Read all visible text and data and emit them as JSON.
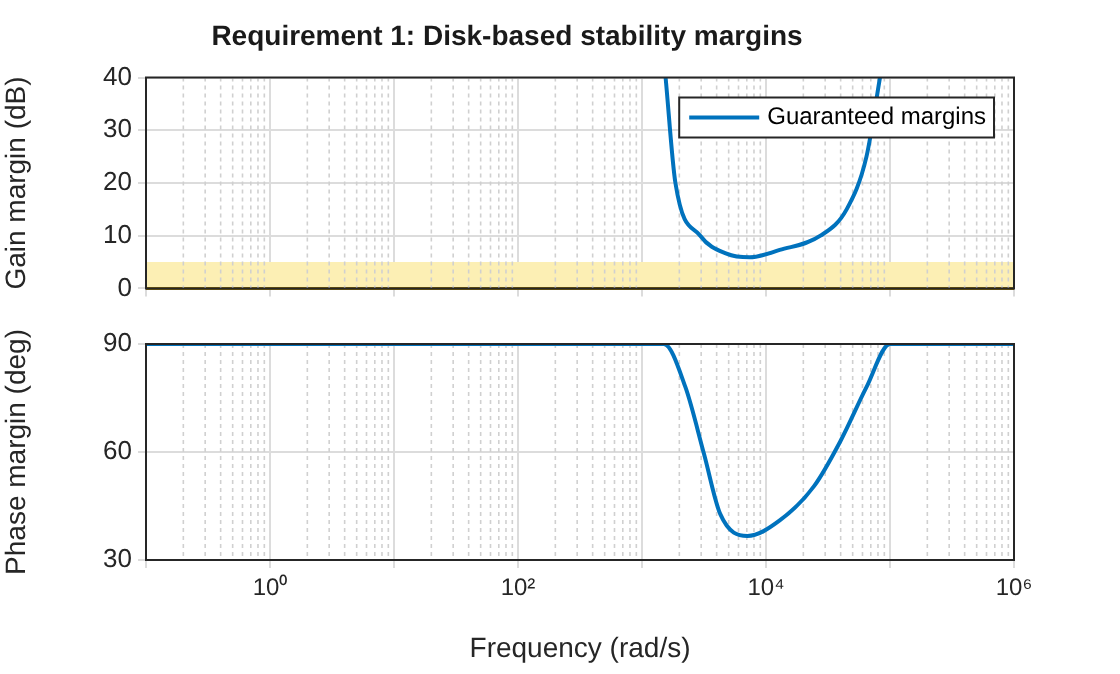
{
  "chart_data": [
    {
      "type": "line",
      "title": "Requirement 1: Disk-based stability margins",
      "ylabel": "Gain margin (dB)",
      "log": "x",
      "grid": true,
      "legend": "top right",
      "marker": "none",
      "line_style": "solid",
      "tick_labels": "y",
      "xlim": [
        0.1,
        1000000
      ],
      "xticks": [
        {
          "value": 0.1,
          "label": null
        },
        {
          "value": 1,
          "label": null
        },
        {
          "value": 10,
          "label": null
        },
        {
          "value": 100,
          "label": null
        },
        {
          "value": 1000,
          "label": null
        },
        {
          "value": 10000,
          "label": null
        },
        {
          "value": 100000,
          "label": null
        },
        {
          "value": 1000000,
          "label": null
        }
      ],
      "ylim": [
        0,
        40
      ],
      "yticks": [
        0,
        10,
        20,
        30,
        40
      ],
      "bands": [
        {
          "axis": "y",
          "from": 0,
          "to": 5,
          "color": "#fcefb4"
        }
      ],
      "series": [
        {
          "name": "Guaranteed margins",
          "color": "#0072bd",
          "x": [
            1550,
            1860,
            2950,
            4800,
            7400,
            12900,
            27500,
            44700,
            64600,
            83000
          ],
          "values": [
            40,
            20,
            10,
            6.6,
            5.9,
            7.3,
            10,
            15,
            25,
            40
          ]
        }
      ]
    },
    {
      "type": "line",
      "xlabel": "Frequency (rad/s)",
      "ylabel": "Phase margin (deg)",
      "log": "x",
      "grid": true,
      "marker": "none",
      "line_style": "solid",
      "xlim": [
        0.1,
        1000000
      ],
      "xticks": [
        {
          "value": 0.1,
          "label": null
        },
        {
          "value": 1,
          "label": "10⁰"
        },
        {
          "value": 10,
          "label": null
        },
        {
          "value": 100,
          "label": "10²"
        },
        {
          "value": 1000,
          "label": null
        },
        {
          "value": 10000,
          "label": "10⁴"
        },
        {
          "value": 100000,
          "label": null
        },
        {
          "value": 1000000,
          "label": "10⁶"
        }
      ],
      "ylim": [
        30,
        90
      ],
      "yticks": [
        30,
        60,
        90
      ],
      "series": [
        {
          "color": "#0072bd",
          "x": [
            0.1,
            1500,
            2240,
            3160,
            4270,
            7080,
            12900,
            24500,
            39800,
            64600,
            100000,
            1000000
          ],
          "values": [
            90,
            90,
            78,
            59.5,
            42.8,
            36.7,
            41,
            50.6,
            63,
            78,
            90,
            90
          ]
        }
      ]
    }
  ]
}
